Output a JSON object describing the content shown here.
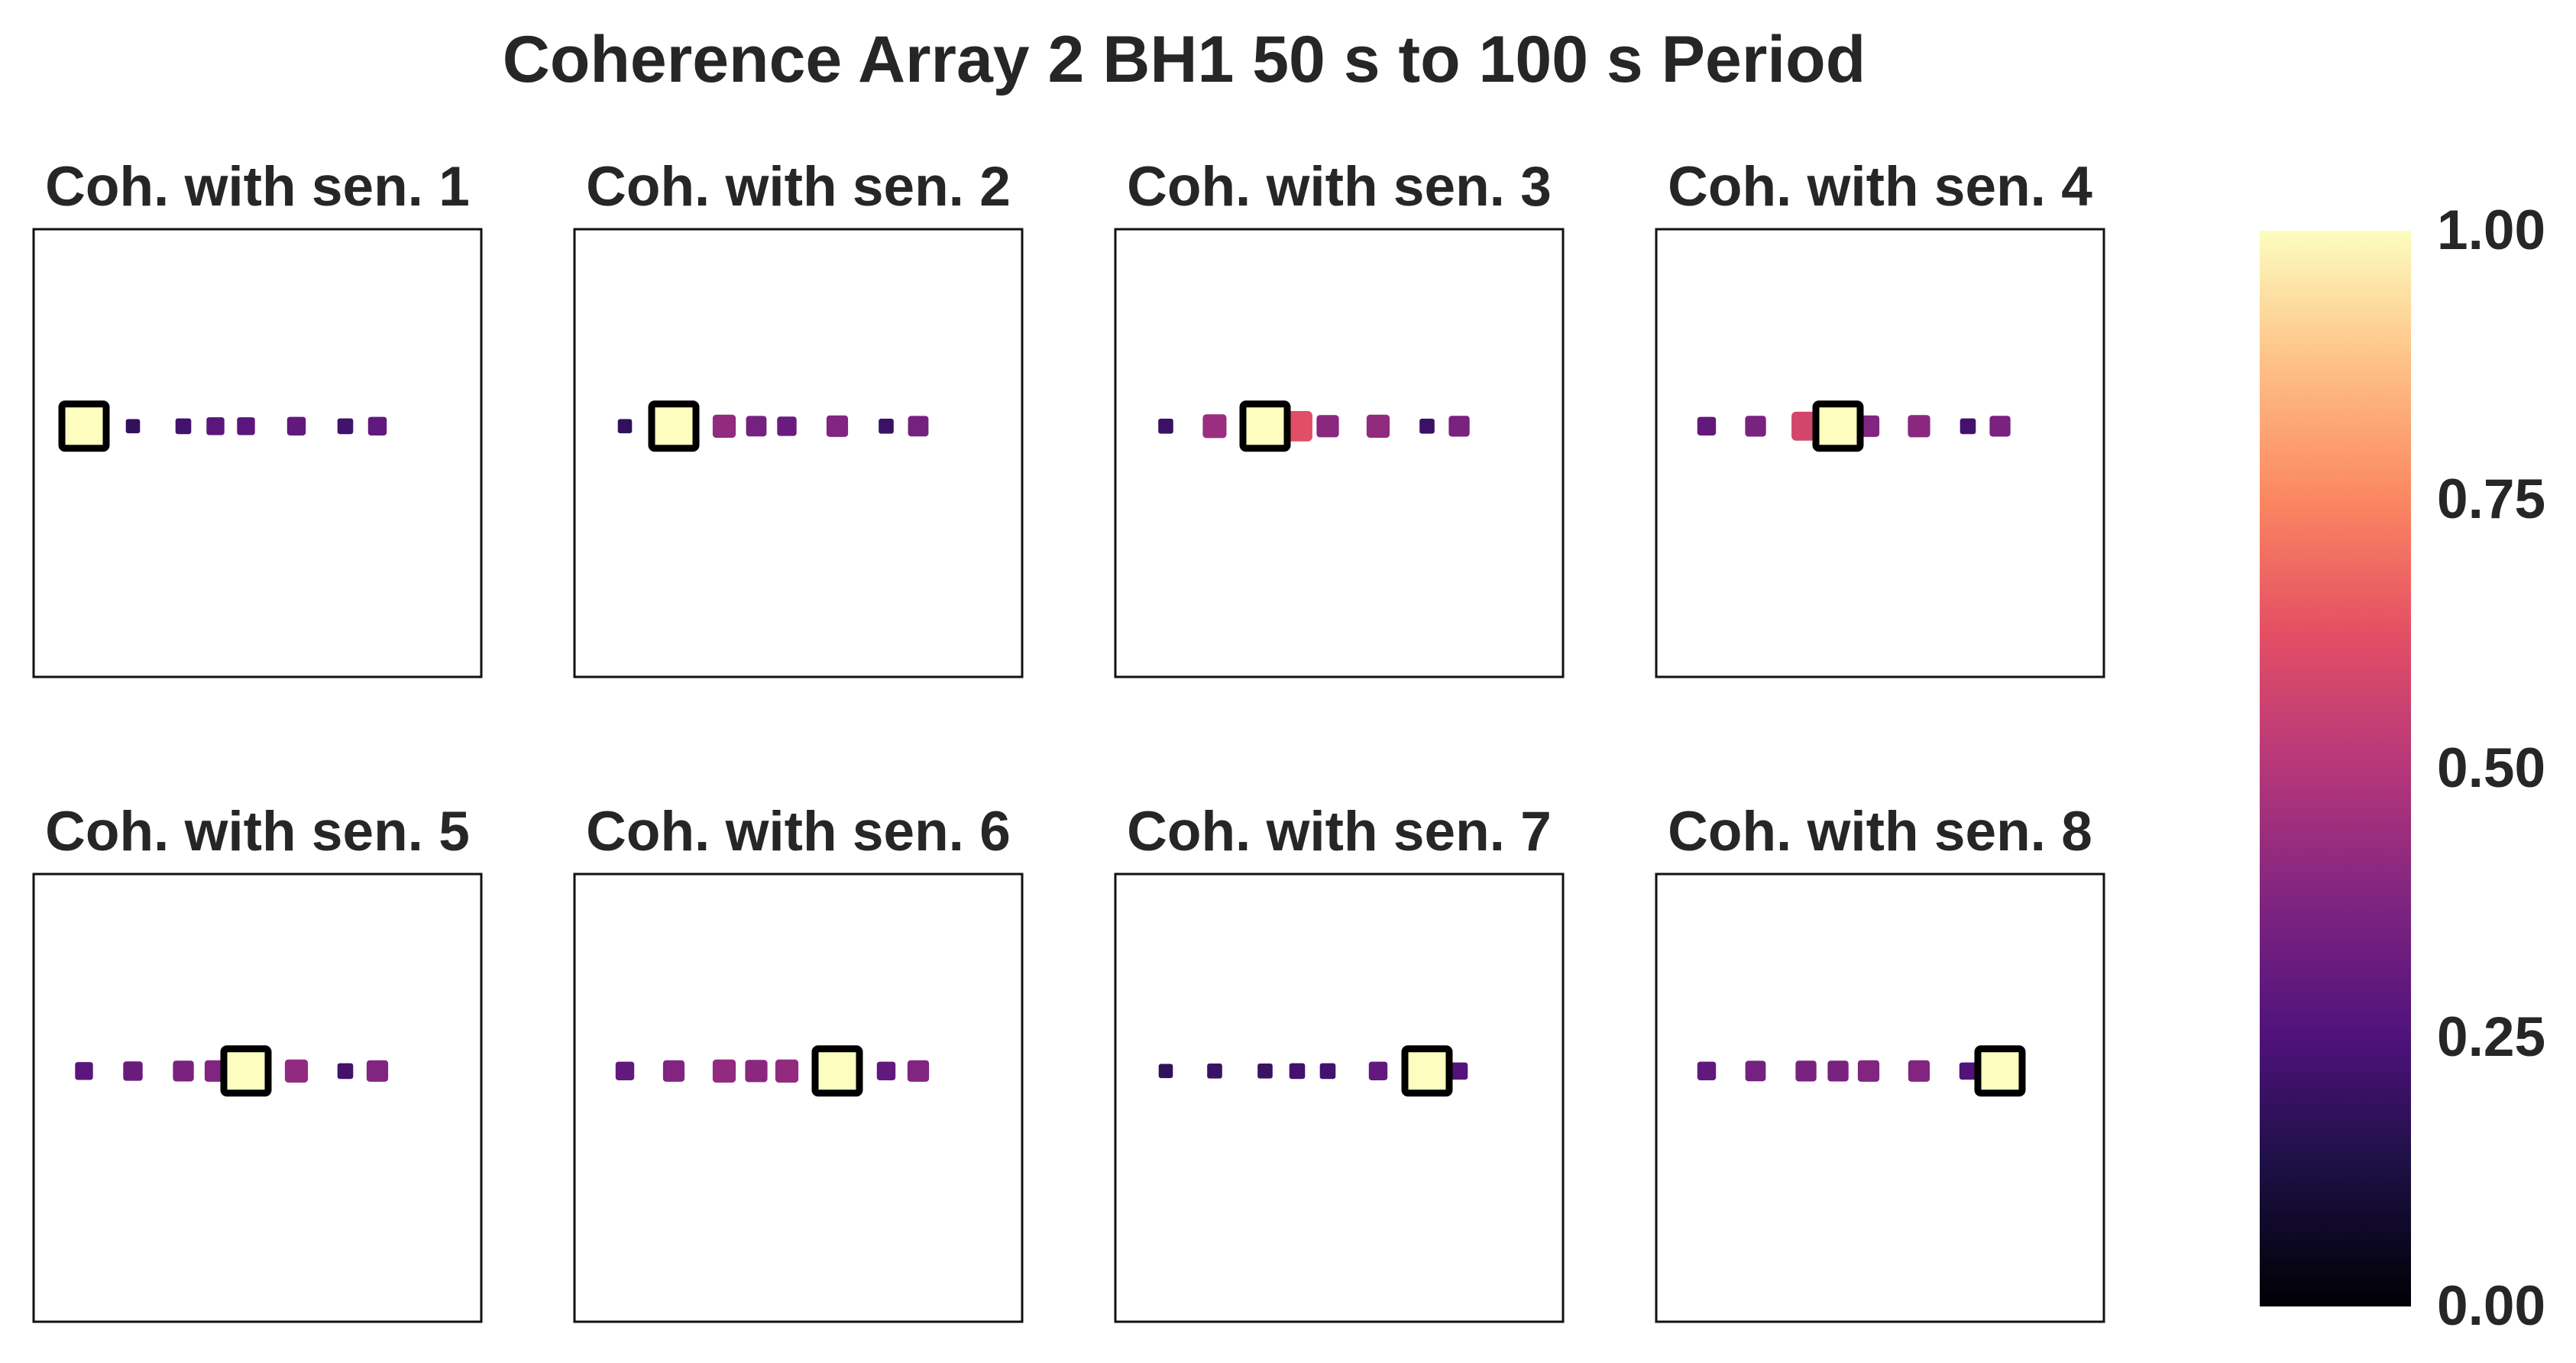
{
  "chart_data": {
    "type": "scatter",
    "title": "Coherence Array 2 BH1 50 s to 100 s Period",
    "colormap": "magma",
    "colorbar": {
      "min": 0.0,
      "max": 1.0,
      "ticks": [
        "0.00",
        "0.25",
        "0.50",
        "0.75",
        "1.00"
      ]
    },
    "sensor_positions": [
      1,
      2,
      3,
      4,
      5,
      6,
      7,
      8
    ],
    "panels": [
      {
        "title": "Coh. with sen. 1",
        "reference": 1,
        "coherence": [
          1.0,
          0.18,
          0.22,
          0.28,
          0.28,
          0.3,
          0.22,
          0.3
        ]
      },
      {
        "title": "Coh. with sen. 2",
        "reference": 2,
        "coherence": [
          0.18,
          1.0,
          0.42,
          0.35,
          0.32,
          0.38,
          0.2,
          0.35
        ]
      },
      {
        "title": "Coh. with sen. 3",
        "reference": 3,
        "coherence": [
          0.2,
          0.44,
          1.0,
          0.62,
          0.4,
          0.42,
          0.2,
          0.36
        ]
      },
      {
        "title": "Coh. with sen. 4",
        "reference": 4,
        "coherence": [
          0.3,
          0.36,
          0.58,
          1.0,
          0.38,
          0.4,
          0.22,
          0.36
        ]
      },
      {
        "title": "Coh. with sen. 5",
        "reference": 5,
        "coherence": [
          0.28,
          0.32,
          0.36,
          0.38,
          1.0,
          0.42,
          0.22,
          0.38
        ]
      },
      {
        "title": "Coh. with sen. 6",
        "reference": 6,
        "coherence": [
          0.3,
          0.38,
          0.42,
          0.4,
          0.42,
          1.0,
          0.3,
          0.38
        ]
      },
      {
        "title": "Coh. with sen. 7",
        "reference": 7,
        "coherence": [
          0.18,
          0.2,
          0.2,
          0.22,
          0.22,
          0.3,
          1.0,
          0.26
        ]
      },
      {
        "title": "Coh. with sen. 8",
        "reference": 8,
        "coherence": [
          0.3,
          0.35,
          0.36,
          0.36,
          0.38,
          0.38,
          0.26,
          1.0
        ]
      }
    ]
  }
}
